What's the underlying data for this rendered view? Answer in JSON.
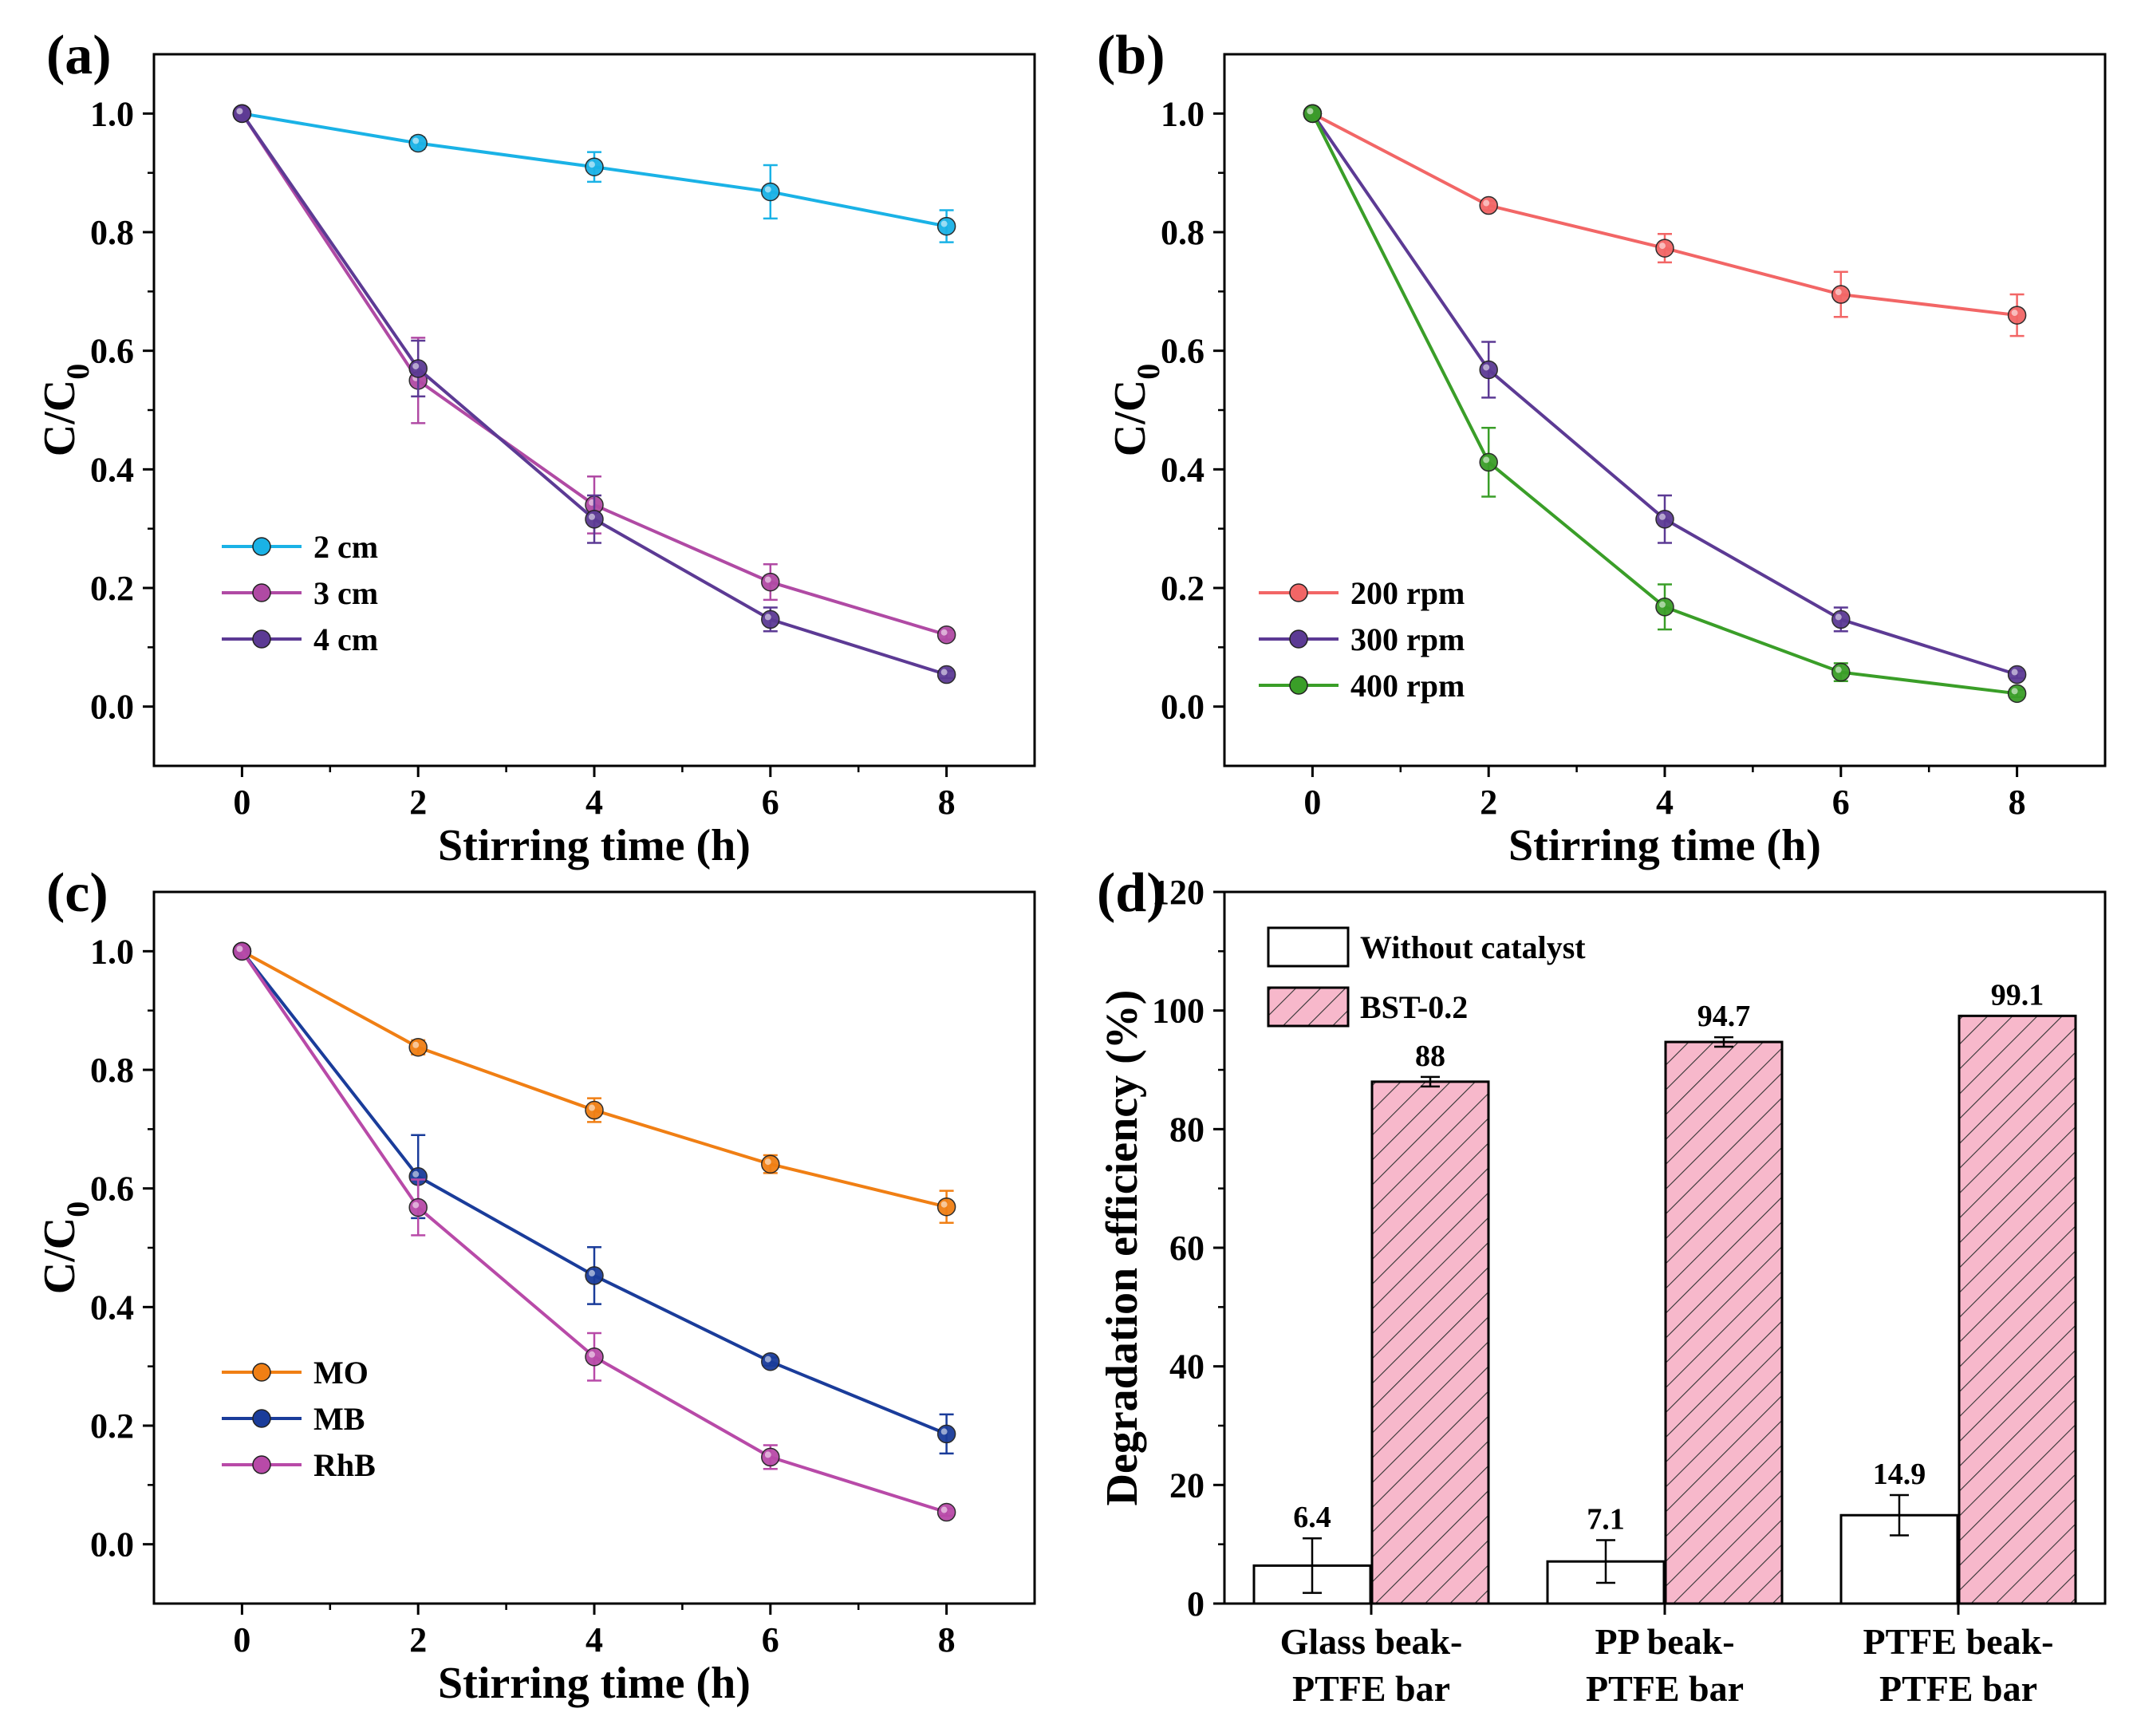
{
  "chart_data": [
    {
      "panel": "(a)",
      "type": "line",
      "xlabel": "Stirring time (h)",
      "ylabel": "C/C0",
      "ylabel_main": "C/C",
      "ylabel_sub": "0",
      "xlim": [
        -1,
        9
      ],
      "ylim": [
        -0.1,
        1.1
      ],
      "xticks": [
        "0",
        "2",
        "4",
        "6",
        "8"
      ],
      "yticks": [
        "0.0",
        "0.2",
        "0.4",
        "0.6",
        "0.8",
        "1.0"
      ],
      "x": [
        0,
        2,
        4,
        6,
        8
      ],
      "legend_position": "lower-left",
      "series": [
        {
          "name": "2 cm",
          "color": "#1ab2e6",
          "values": [
            1.0,
            0.95,
            0.91,
            0.868,
            0.81
          ],
          "errors": [
            0,
            0.01,
            0.025,
            0.045,
            0.027
          ]
        },
        {
          "name": "3 cm",
          "color": "#b04aa4",
          "values": [
            1.0,
            0.55,
            0.34,
            0.21,
            0.121
          ],
          "errors": [
            0,
            0.072,
            0.048,
            0.03,
            0.008
          ]
        },
        {
          "name": "4 cm",
          "color": "#5c3a94",
          "values": [
            1.0,
            0.57,
            0.316,
            0.147,
            0.054
          ],
          "errors": [
            0,
            0.047,
            0.04,
            0.02,
            0.006
          ]
        }
      ]
    },
    {
      "panel": "(b)",
      "type": "line",
      "xlabel": "Stirring time (h)",
      "ylabel": "C/C0",
      "ylabel_main": "C/C",
      "ylabel_sub": "0",
      "xlim": [
        -1,
        9
      ],
      "ylim": [
        -0.1,
        1.1
      ],
      "xticks": [
        "0",
        "2",
        "4",
        "6",
        "8"
      ],
      "yticks": [
        "0.0",
        "0.2",
        "0.4",
        "0.6",
        "0.8",
        "1.0"
      ],
      "x": [
        0,
        2,
        4,
        6,
        8
      ],
      "legend_position": "lower-left",
      "series": [
        {
          "name": "200 rpm",
          "color": "#f26666",
          "values": [
            1.0,
            0.845,
            0.773,
            0.695,
            0.66
          ],
          "errors": [
            0,
            0.008,
            0.024,
            0.038,
            0.035
          ]
        },
        {
          "name": "300 rpm",
          "color": "#5c3a94",
          "values": [
            1.0,
            0.568,
            0.316,
            0.147,
            0.054
          ],
          "errors": [
            0,
            0.047,
            0.04,
            0.02,
            0.006
          ]
        },
        {
          "name": "400 rpm",
          "color": "#3a9e28",
          "values": [
            1.0,
            0.412,
            0.168,
            0.058,
            0.022
          ],
          "errors": [
            0,
            0.058,
            0.038,
            0.015,
            0.006
          ]
        }
      ]
    },
    {
      "panel": "(c)",
      "type": "line",
      "xlabel": "Stirring time (h)",
      "ylabel": "C/C0",
      "ylabel_main": "C/C",
      "ylabel_sub": "0",
      "xlim": [
        -1,
        9
      ],
      "ylim": [
        -0.1,
        1.1
      ],
      "xticks": [
        "0",
        "2",
        "4",
        "6",
        "8"
      ],
      "yticks": [
        "0.0",
        "0.2",
        "0.4",
        "0.6",
        "0.8",
        "1.0"
      ],
      "x": [
        0,
        2,
        4,
        6,
        8
      ],
      "legend_position": "lower-left",
      "series": [
        {
          "name": "MO",
          "color": "#f07f14",
          "values": [
            1.0,
            0.838,
            0.732,
            0.641,
            0.569
          ],
          "errors": [
            0,
            0.012,
            0.02,
            0.015,
            0.027
          ]
        },
        {
          "name": "MB",
          "color": "#1a3c9a",
          "values": [
            1.0,
            0.62,
            0.453,
            0.308,
            0.186
          ],
          "errors": [
            0,
            0.07,
            0.048,
            0.007,
            0.033
          ]
        },
        {
          "name": "RhB",
          "color": "#b84aa8",
          "values": [
            1.0,
            0.568,
            0.316,
            0.147,
            0.054
          ],
          "errors": [
            0,
            0.047,
            0.04,
            0.02,
            0.006
          ]
        }
      ]
    },
    {
      "panel": "(d)",
      "type": "bar",
      "ylabel": "Degradation efficiency (%)",
      "ylim": [
        0,
        120
      ],
      "yticks": [
        "0",
        "20",
        "40",
        "60",
        "80",
        "100",
        "120"
      ],
      "categories": [
        {
          "line1": "Glass beak-",
          "line2": "PTFE bar"
        },
        {
          "line1": "PP beak-",
          "line2": "PTFE bar"
        },
        {
          "line1": "PTFE beak-",
          "line2": "PTFE bar"
        }
      ],
      "legend_position": "top-left",
      "series": [
        {
          "name": "Without catalyst",
          "fill": "#ffffff",
          "values": [
            6.4,
            7.1,
            14.9
          ],
          "labels": [
            "6.4",
            "7.1",
            "14.9"
          ],
          "errors": [
            4.6,
            3.6,
            3.4
          ]
        },
        {
          "name": "BST-0.2",
          "fill": "#f7b8cb",
          "hatched": true,
          "values": [
            88,
            94.7,
            99.1
          ],
          "labels": [
            "88",
            "94.7",
            "99.1"
          ],
          "errors": [
            0.8,
            0.8,
            0
          ]
        }
      ]
    }
  ]
}
